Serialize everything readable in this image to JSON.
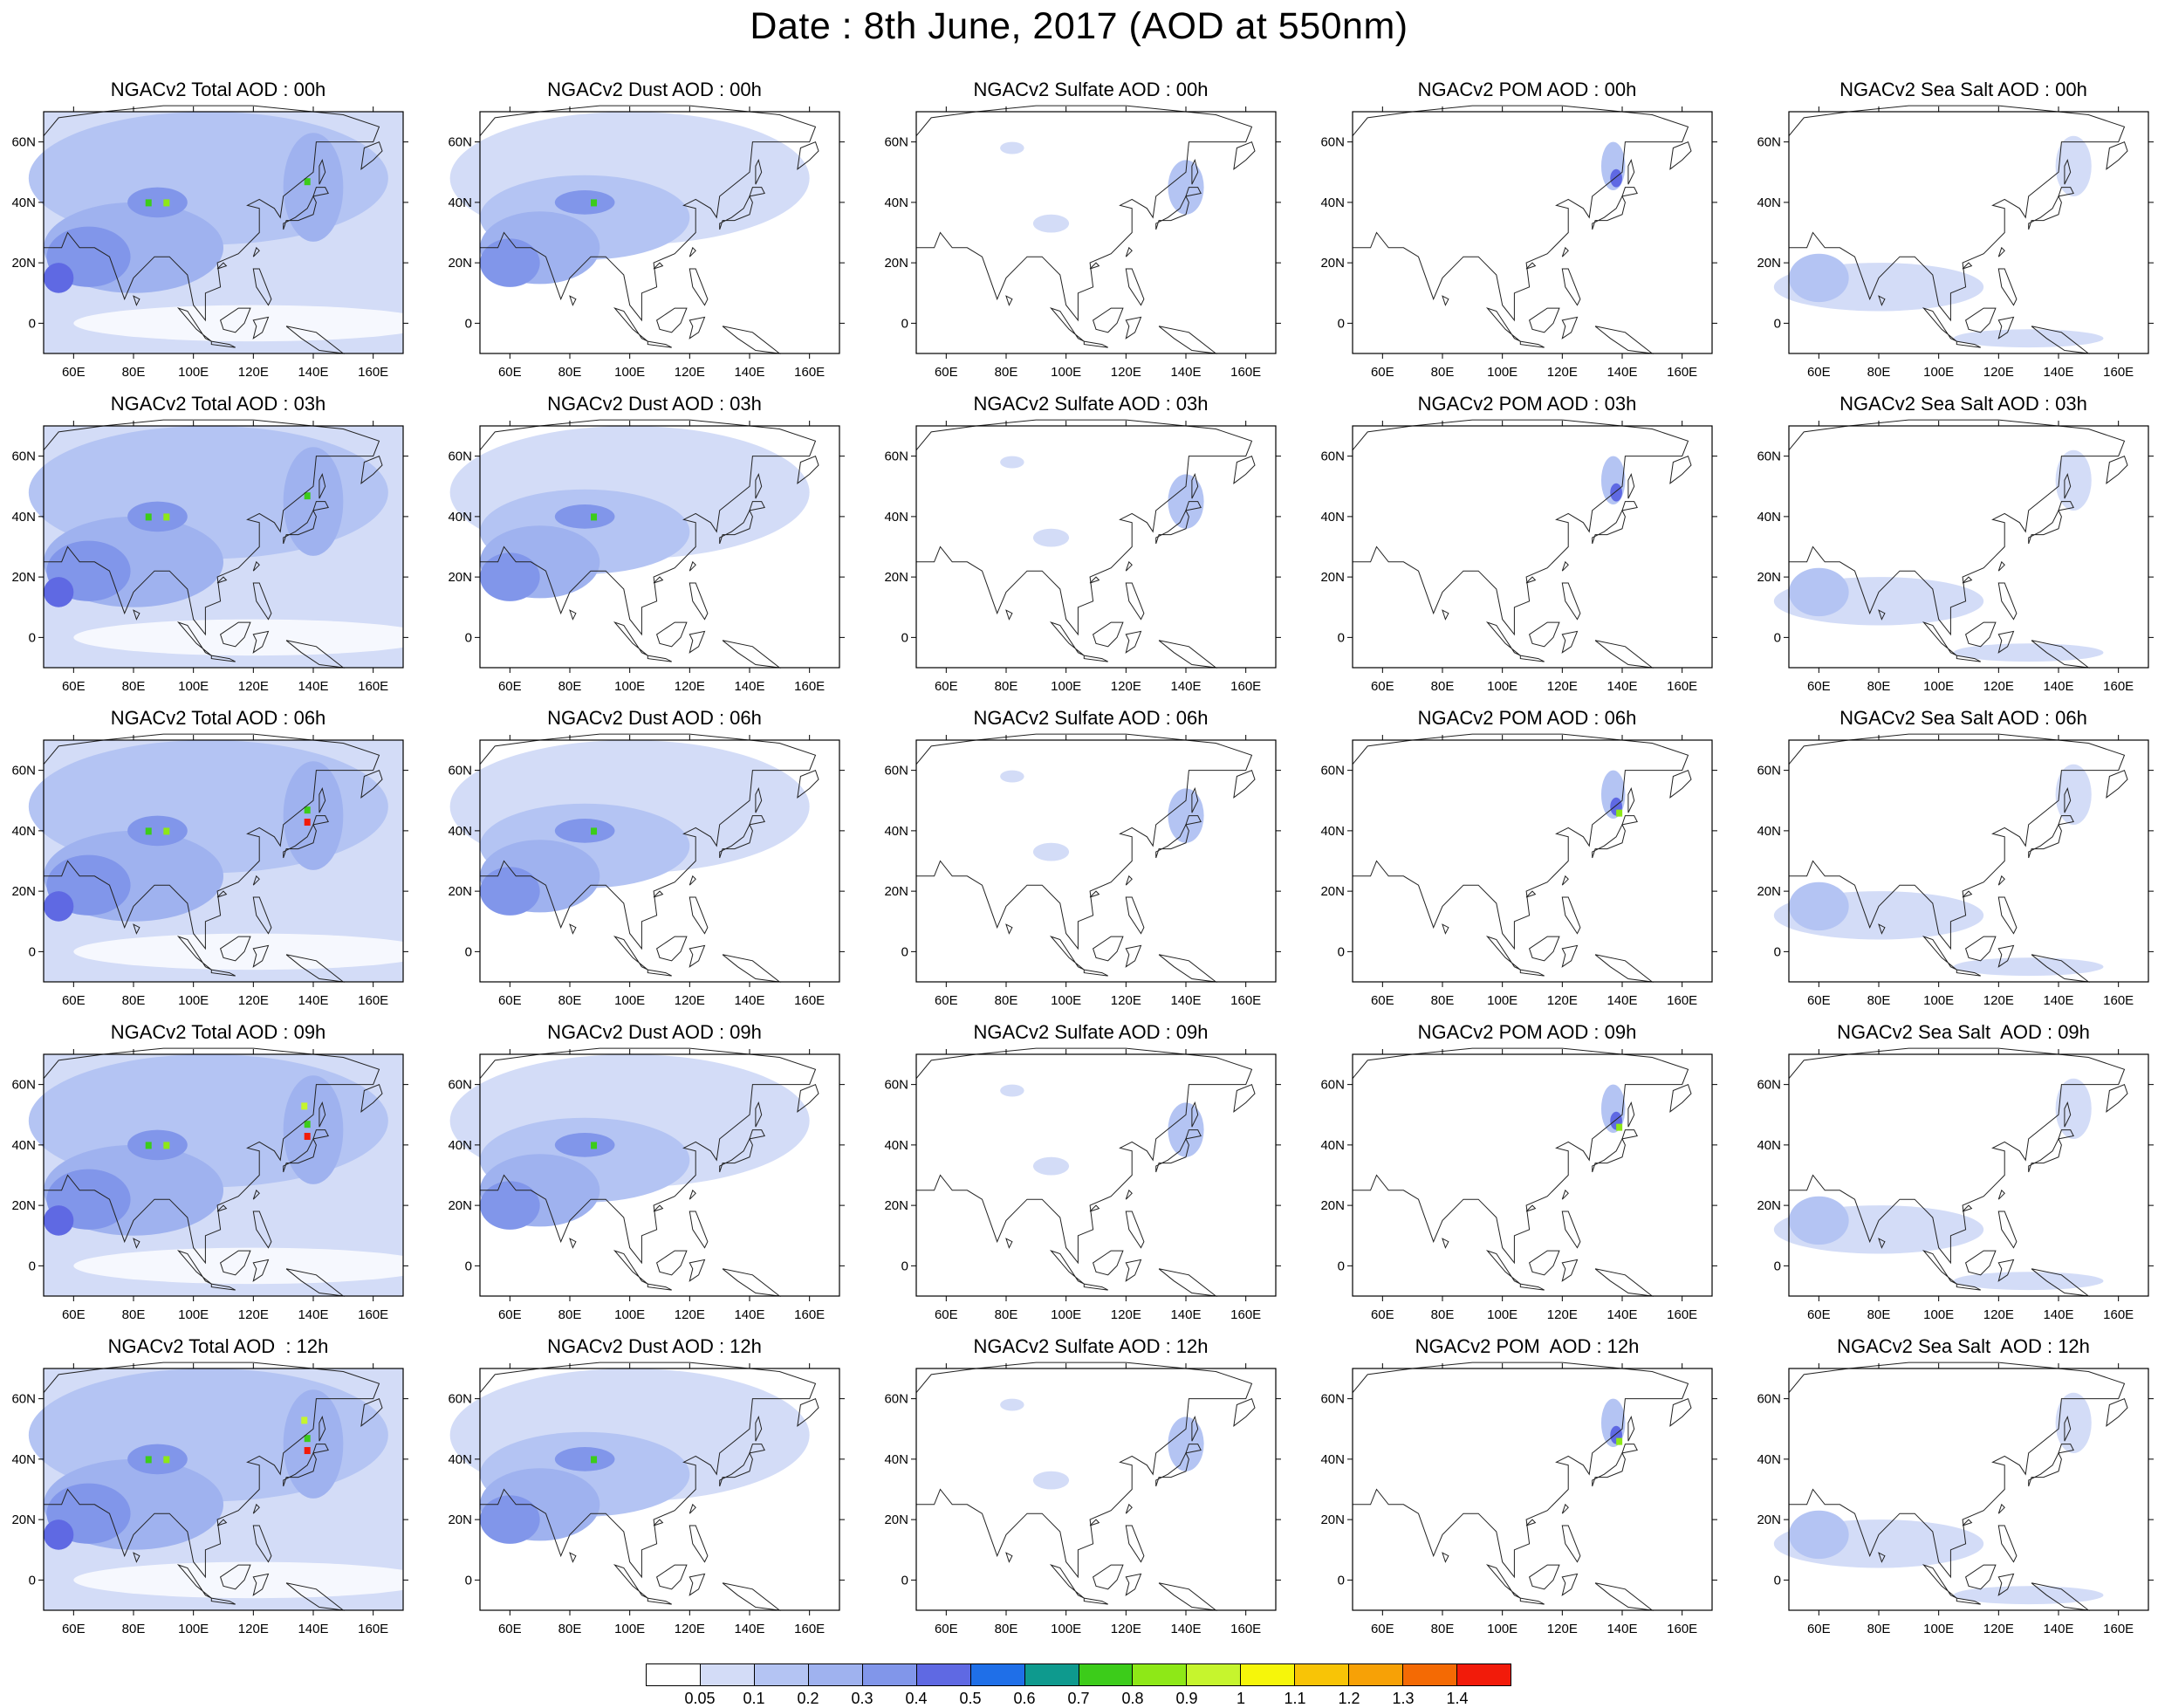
{
  "title": "Date : 8th June, 2017 (AOD at 550nm)",
  "lat_labels": [
    "60N",
    "40N",
    "20N",
    "0"
  ],
  "lon_labels": [
    "60E",
    "80E",
    "100E",
    "120E",
    "140E",
    "160E"
  ],
  "rows": [
    {
      "titles": [
        "NGACv2 Total AOD : 00h",
        "NGACv2 Dust AOD : 00h",
        "NGACv2 Sulfate AOD : 00h",
        "NGACv2 POM AOD : 00h",
        "NGACv2 Sea Salt AOD : 00h"
      ]
    },
    {
      "titles": [
        "NGACv2 Total AOD : 03h",
        "NGACv2 Dust AOD : 03h",
        "NGACv2 Sulfate AOD : 03h",
        "NGACv2 POM AOD : 03h",
        "NGACv2 Sea Salt AOD : 03h"
      ]
    },
    {
      "titles": [
        "NGACv2 Total AOD : 06h",
        "NGACv2 Dust AOD : 06h",
        "NGACv2 Sulfate AOD : 06h",
        "NGACv2 POM AOD : 06h",
        "NGACv2 Sea Salt AOD : 06h"
      ]
    },
    {
      "titles": [
        "NGACv2 Total AOD : 09h",
        "NGACv2 Dust AOD : 09h",
        "NGACv2 Sulfate AOD : 09h",
        "NGACv2 POM AOD : 09h",
        "NGACv2 Sea Salt  AOD : 09h"
      ]
    },
    {
      "titles": [
        "NGACv2 Total AOD  : 12h",
        "NGACv2 Dust AOD : 12h",
        "NGACv2 Sulfate AOD : 12h",
        "NGACv2 POM  AOD : 12h",
        "NGACv2 Sea Salt  AOD : 12h"
      ]
    }
  ],
  "colorbar": {
    "ticks": [
      "0.05",
      "0.1",
      "0.2",
      "0.3",
      "0.4",
      "0.5",
      "0.6",
      "0.7",
      "0.8",
      "0.9",
      "1",
      "1.1",
      "1.2",
      "1.3",
      "1.4"
    ],
    "colors": [
      "#ffffff",
      "#d3dcf7",
      "#b4c4f3",
      "#9fb2ef",
      "#8196ea",
      "#5f69e3",
      "#1f6fe8",
      "#0e9a8e",
      "#3ccc1a",
      "#8ee817",
      "#c6f52d",
      "#f6f60a",
      "#f8c406",
      "#f7a106",
      "#f46a04",
      "#f21b0a"
    ]
  }
}
